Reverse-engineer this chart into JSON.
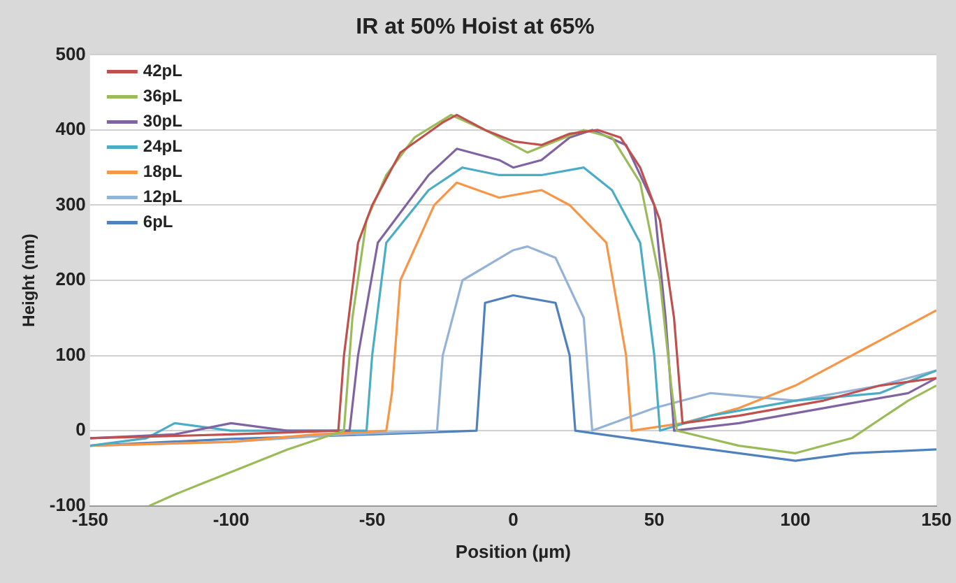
{
  "chart_data": {
    "type": "line",
    "title": "IR at 50% Hoist at 65%",
    "xlabel": "Position (µm)",
    "ylabel": "Height (nm)",
    "xlim": [
      -150,
      150
    ],
    "xticks": [
      -150,
      -100,
      -50,
      0,
      50,
      100,
      150
    ],
    "ylim": [
      -100,
      500
    ],
    "yticks": [
      -100,
      0,
      100,
      200,
      300,
      400,
      500
    ],
    "grid": "y",
    "legend": "top left",
    "marker": "none",
    "line_style": "solid",
    "series": [
      {
        "name": "42pL",
        "color": "#c0504d",
        "x": [
          -150,
          -100,
          -62,
          -60,
          -55,
          -50,
          -40,
          -25,
          -20,
          -10,
          0,
          10,
          20,
          30,
          38,
          45,
          52,
          57,
          60,
          80,
          110,
          130,
          150
        ],
        "values": [
          -10,
          -5,
          0,
          100,
          250,
          300,
          370,
          410,
          420,
          400,
          385,
          380,
          395,
          400,
          390,
          350,
          280,
          150,
          10,
          20,
          40,
          60,
          70
        ]
      },
      {
        "name": "36pL",
        "color": "#9bbb59",
        "x": [
          -129,
          -120,
          -110,
          -100,
          -80,
          -60,
          -57,
          -52,
          -45,
          -35,
          -22,
          -10,
          5,
          15,
          25,
          35,
          45,
          52,
          56,
          58,
          80,
          100,
          120,
          140,
          150
        ],
        "values": [
          -100,
          -85,
          -70,
          -55,
          -25,
          0,
          150,
          280,
          340,
          390,
          420,
          400,
          370,
          385,
          400,
          390,
          330,
          200,
          60,
          0,
          -20,
          -30,
          -10,
          40,
          60
        ]
      },
      {
        "name": "30pL",
        "color": "#8064a2",
        "x": [
          -150,
          -120,
          -100,
          -80,
          -58,
          -55,
          -48,
          -30,
          -20,
          -5,
          0,
          10,
          20,
          28,
          40,
          50,
          54,
          57,
          80,
          110,
          140,
          150
        ],
        "values": [
          -10,
          -5,
          10,
          0,
          0,
          100,
          250,
          340,
          375,
          360,
          350,
          360,
          390,
          400,
          380,
          300,
          150,
          0,
          10,
          30,
          50,
          70
        ]
      },
      {
        "name": "24pL",
        "color": "#4bacc6",
        "x": [
          -150,
          -130,
          -120,
          -100,
          -70,
          -52,
          -50,
          -45,
          -30,
          -18,
          -5,
          10,
          25,
          35,
          45,
          50,
          52,
          70,
          100,
          130,
          150
        ],
        "values": [
          -20,
          -10,
          10,
          0,
          0,
          0,
          100,
          250,
          320,
          350,
          340,
          340,
          350,
          320,
          250,
          100,
          0,
          20,
          40,
          50,
          80
        ]
      },
      {
        "name": "18pL",
        "color": "#f79646",
        "x": [
          -150,
          -100,
          -70,
          -45,
          -43,
          -40,
          -28,
          -20,
          -5,
          10,
          20,
          33,
          40,
          42,
          60,
          80,
          100,
          125,
          150
        ],
        "values": [
          -20,
          -15,
          -5,
          0,
          50,
          200,
          300,
          330,
          310,
          320,
          300,
          250,
          100,
          0,
          10,
          30,
          60,
          110,
          160
        ]
      },
      {
        "name": "12pL",
        "color": "#95b3d7",
        "x": [
          -150,
          -100,
          -60,
          -27,
          -25,
          -18,
          0,
          5,
          15,
          25,
          28,
          50,
          70,
          100,
          130,
          150
        ],
        "values": [
          -20,
          -15,
          -5,
          0,
          100,
          200,
          240,
          245,
          230,
          150,
          0,
          30,
          50,
          40,
          60,
          80
        ]
      },
      {
        "name": "6pL",
        "color": "#4f81bd",
        "x": [
          -150,
          -100,
          -50,
          -13,
          -10,
          0,
          15,
          20,
          22,
          60,
          100,
          120,
          150
        ],
        "values": [
          -20,
          -11,
          -5,
          0,
          170,
          180,
          170,
          100,
          0,
          -20,
          -40,
          -30,
          -25
        ]
      }
    ]
  }
}
